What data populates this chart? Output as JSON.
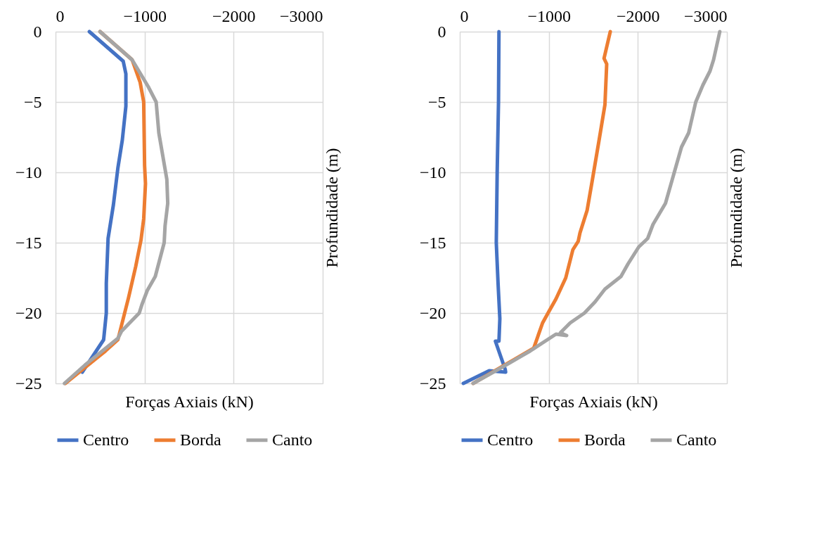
{
  "chart_data": [
    {
      "type": "line",
      "xlabel": "Forças Axiais (kN)",
      "ylabel": "Profundidade (m)",
      "xlim": [
        0,
        -3000
      ],
      "xticks": [
        0,
        -1000,
        -2000,
        -3000
      ],
      "ylim": [
        -25,
        0
      ],
      "yticks": [
        0,
        -5,
        -10,
        -15,
        -20,
        -25
      ],
      "grid": true,
      "legend": "bottom",
      "series": [
        {
          "name": "Centro",
          "color": "#4472c4",
          "x": [
            -380,
            -760,
            -790,
            -790,
            -750,
            -700,
            -650,
            -590,
            -570,
            -570,
            -540,
            -300
          ],
          "values": [
            0,
            -2.1,
            -3.0,
            -5.3,
            -7.7,
            -9.7,
            -12.3,
            -14.7,
            -17.9,
            -20.0,
            -21.9,
            -24.2
          ]
        },
        {
          "name": "Borda",
          "color": "#ed7d31",
          "x": [
            -500,
            -860,
            -950,
            -990,
            -1000,
            -1010,
            -990,
            -960,
            -900,
            -820,
            -740,
            -700,
            -560,
            -110
          ],
          "values": [
            0,
            -2.0,
            -3.6,
            -5.0,
            -9.5,
            -10.8,
            -13.3,
            -14.8,
            -16.7,
            -18.9,
            -20.9,
            -21.9,
            -22.7,
            -25.0
          ]
        },
        {
          "name": "Canto",
          "color": "#a5a5a5",
          "x": [
            -500,
            -860,
            -1040,
            -1130,
            -1160,
            -1190,
            -1250,
            -1260,
            -1230,
            -1220,
            -1120,
            -1030,
            -970,
            -940,
            -740,
            -700,
            -330,
            -100
          ],
          "values": [
            0,
            -2.0,
            -3.9,
            -5.0,
            -7.2,
            -8.3,
            -10.5,
            -12.2,
            -13.8,
            -15.0,
            -17.4,
            -18.4,
            -19.4,
            -20.0,
            -21.3,
            -21.8,
            -23.7,
            -25.0
          ]
        }
      ]
    },
    {
      "type": "line",
      "xlabel": "Forças Axiais (kN)",
      "ylabel": "Profundidade (m)",
      "xlim": [
        0,
        -3000
      ],
      "xticks": [
        0,
        -1000,
        -2000,
        -3000
      ],
      "ylim": [
        -25,
        0
      ],
      "yticks": [
        0,
        -5,
        -10,
        -15,
        -20,
        -25
      ],
      "grid": true,
      "legend": "bottom",
      "series": [
        {
          "name": "Centro",
          "color": "#4472c4",
          "x": [
            -440,
            -435,
            -420,
            -410,
            -430,
            -450,
            -440,
            -400,
            -510,
            -515,
            -330,
            -40
          ],
          "values": [
            0,
            -5.0,
            -10.0,
            -15.0,
            -17.9,
            -20.4,
            -22.0,
            -22.0,
            -24.0,
            -24.2,
            -24.1,
            -25.0
          ]
        },
        {
          "name": "Borda",
          "color": "#ed7d31",
          "x": [
            -1690,
            -1620,
            -1650,
            -1630,
            -1570,
            -1490,
            -1430,
            -1350,
            -1330,
            -1270,
            -1190,
            -1080,
            -1000,
            -930,
            -830,
            -150
          ],
          "values": [
            0,
            -1.9,
            -2.3,
            -5.2,
            -7.5,
            -10.5,
            -12.7,
            -14.3,
            -14.9,
            -15.5,
            -17.5,
            -19.0,
            -19.9,
            -20.7,
            -22.5,
            -25.0
          ]
        },
        {
          "name": "Canto",
          "color": "#a5a5a5",
          "x": [
            -2920,
            -2850,
            -2810,
            -2730,
            -2650,
            -2570,
            -2490,
            -2400,
            -2310,
            -2170,
            -2110,
            -2010,
            -1890,
            -1810,
            -1630,
            -1520,
            -1400,
            -1240,
            -1130,
            -1200,
            -1080,
            -790,
            -490,
            -150
          ],
          "values": [
            0,
            -2.0,
            -2.8,
            -3.8,
            -5.0,
            -7.2,
            -8.2,
            -10.2,
            -12.2,
            -13.7,
            -14.7,
            -15.3,
            -16.5,
            -17.4,
            -18.3,
            -19.2,
            -20.0,
            -20.7,
            -21.4,
            -21.6,
            -21.5,
            -22.7,
            -23.8,
            -25.0
          ]
        }
      ]
    }
  ]
}
